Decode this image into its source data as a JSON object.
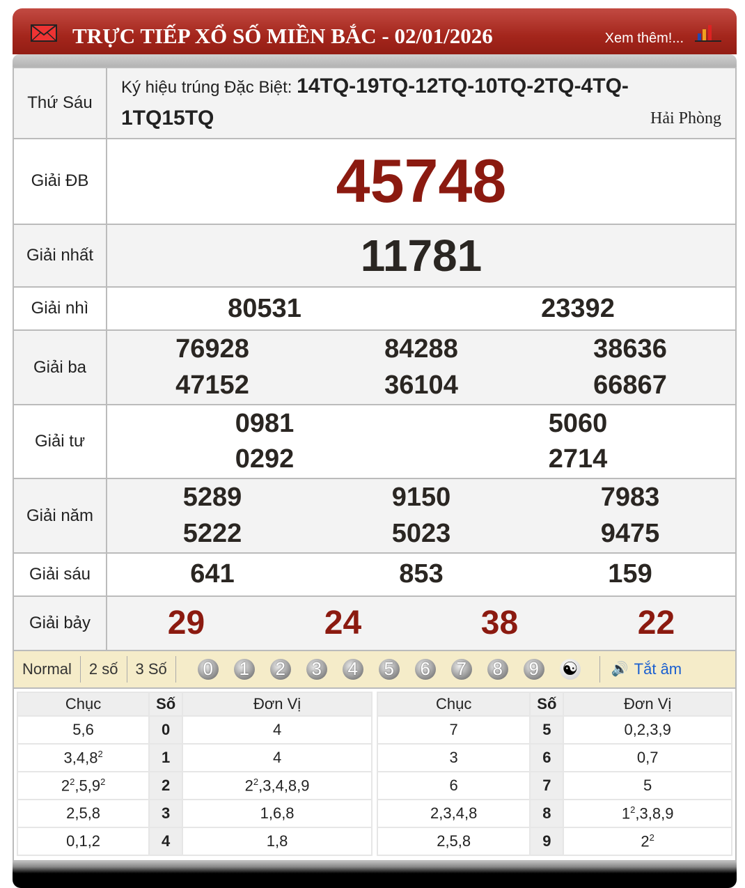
{
  "header": {
    "title": "TRỰC TIẾP XỔ SỐ MIỀN BẮC - 02/01/2026",
    "more_link": "Xem thêm!..."
  },
  "day": "Thứ Sáu",
  "symbols": {
    "label": "Ký hiệu trúng Đặc Biệt:",
    "value": "14TQ-19TQ-12TQ-10TQ-2TQ-4TQ-1TQ15TQ",
    "province": "Hải Phòng"
  },
  "prizes": [
    {
      "label": "Giải ĐB",
      "numbers": [
        "45748"
      ],
      "cols": 1
    },
    {
      "label": "Giải nhất",
      "numbers": [
        "11781"
      ],
      "cols": 1
    },
    {
      "label": "Giải nhì",
      "numbers": [
        "80531",
        "23392"
      ],
      "cols": 2
    },
    {
      "label": "Giải ba",
      "numbers": [
        "76928",
        "84288",
        "38636",
        "47152",
        "36104",
        "66867"
      ],
      "cols": 3
    },
    {
      "label": "Giải tư",
      "numbers": [
        "0981",
        "5060",
        "0292",
        "2714"
      ],
      "cols": 2
    },
    {
      "label": "Giải năm",
      "numbers": [
        "5289",
        "9150",
        "7983",
        "5222",
        "5023",
        "9475"
      ],
      "cols": 3
    },
    {
      "label": "Giải sáu",
      "numbers": [
        "641",
        "853",
        "159"
      ],
      "cols": 3
    },
    {
      "label": "Giải bảy",
      "numbers": [
        "29",
        "24",
        "38",
        "22"
      ],
      "cols": 4
    }
  ],
  "colors": {
    "special": "#8b1a10",
    "header": "#a4261c",
    "link": "#1a5fd0"
  },
  "toolbar": {
    "options": [
      "Normal",
      "2 số",
      "3 Số"
    ],
    "balls": [
      "0",
      "1",
      "2",
      "3",
      "4",
      "5",
      "6",
      "7",
      "8",
      "9"
    ],
    "sound": "Tắt âm"
  },
  "loto": {
    "headers": [
      "Chục",
      "Số",
      "Đơn Vị"
    ],
    "rows": [
      {
        "head": "0",
        "chuc": [
          [
            "5"
          ],
          [
            "6"
          ]
        ],
        "donvi": [
          [
            "4"
          ]
        ]
      },
      {
        "head": "1",
        "chuc": [
          [
            "3"
          ],
          [
            "4"
          ],
          [
            "8",
            "2"
          ]
        ],
        "donvi": [
          [
            "4"
          ]
        ]
      },
      {
        "head": "2",
        "chuc": [
          [
            "2",
            "2"
          ],
          [
            "5"
          ],
          [
            "9",
            "2"
          ]
        ],
        "donvi": [
          [
            "2",
            "2"
          ],
          [
            "3"
          ],
          [
            "4"
          ],
          [
            "8"
          ],
          [
            "9"
          ]
        ]
      },
      {
        "head": "3",
        "chuc": [
          [
            "2"
          ],
          [
            "5"
          ],
          [
            "8"
          ]
        ],
        "donvi": [
          [
            "1"
          ],
          [
            "6"
          ],
          [
            "8"
          ]
        ]
      },
      {
        "head": "4",
        "chuc": [
          [
            "0"
          ],
          [
            "1"
          ],
          [
            "2"
          ]
        ],
        "donvi": [
          [
            "1"
          ],
          [
            "8"
          ]
        ]
      },
      {
        "head": "5",
        "chuc": [
          [
            "7"
          ]
        ],
        "donvi": [
          [
            "0"
          ],
          [
            "2"
          ],
          [
            "3"
          ],
          [
            "9"
          ]
        ]
      },
      {
        "head": "6",
        "chuc": [
          [
            "3"
          ]
        ],
        "donvi": [
          [
            "0"
          ],
          [
            "7"
          ]
        ]
      },
      {
        "head": "7",
        "chuc": [
          [
            "6"
          ]
        ],
        "donvi": [
          [
            "5"
          ]
        ]
      },
      {
        "head": "8",
        "chuc": [
          [
            "2"
          ],
          [
            "3"
          ],
          [
            "4"
          ],
          [
            "8"
          ]
        ],
        "donvi": [
          [
            "1",
            "2"
          ],
          [
            "3"
          ],
          [
            "8"
          ],
          [
            "9"
          ]
        ]
      },
      {
        "head": "9",
        "chuc": [
          [
            "2"
          ],
          [
            "5"
          ],
          [
            "8"
          ]
        ],
        "donvi": [
          [
            "2",
            "2"
          ]
        ]
      }
    ]
  }
}
